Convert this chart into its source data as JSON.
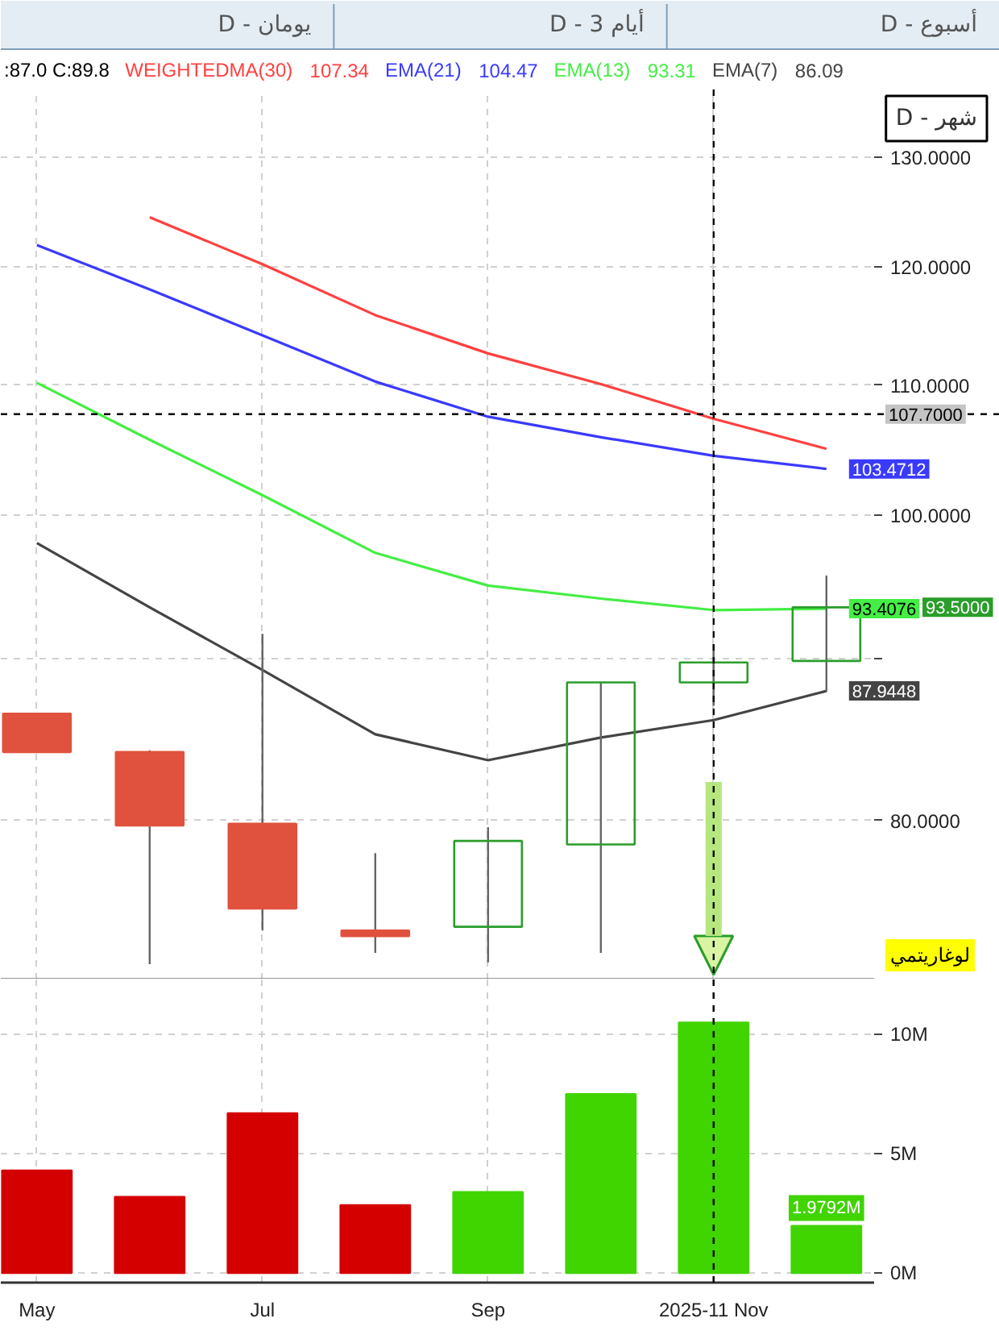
{
  "chart_data": [
    {
      "type": "candlestick",
      "categories": [
        "May",
        null,
        "Jul",
        null,
        "Sep",
        null,
        "2025-11 Nov",
        null
      ],
      "ohlc": [
        [
          86.5,
          86.5,
          84.1,
          84.1
        ],
        [
          84.1,
          84.2,
          72.0,
          79.7
        ],
        [
          79.8,
          91.7,
          73.8,
          75.0
        ],
        [
          73.8,
          78.1,
          72.6,
          73.5
        ],
        [
          74.0,
          79.6,
          72.1,
          78.8
        ],
        [
          78.6,
          88.5,
          72.6,
          88.5
        ],
        [
          88.5,
          91.0,
          87.0,
          89.8
        ],
        [
          89.9,
          95.7,
          87.9,
          93.5
        ]
      ],
      "colors": [
        "#e0523e",
        "#e0523e",
        "#e0523e",
        "#e0523e",
        "#2a9d2a",
        "#2a9d2a",
        "#2a9d2a",
        "#2a9d2a"
      ],
      "series": [
        {
          "name": "WEIGHTEDMA(30)",
          "type": "line",
          "color": "#ff4040",
          "values": [
            null,
            124.4,
            120.2,
            115.8,
            112.6,
            110.1,
            107.34,
            105.0
          ]
        },
        {
          "name": "EMA(21)",
          "type": "line",
          "color": "#3a3aff",
          "values": [
            121.9,
            118.0,
            114.1,
            110.3,
            107.5,
            105.9,
            104.47,
            103.4712
          ],
          "value_labels": [
            null,
            null,
            null,
            null,
            null,
            null,
            null,
            "103.4712"
          ]
        },
        {
          "name": "EMA(13)",
          "type": "line",
          "color": "#44ee44",
          "values": [
            110.2,
            105.7,
            101.5,
            97.3,
            95.0,
            94.1,
            93.31,
            93.4076
          ],
          "value_labels": [
            null,
            null,
            null,
            null,
            null,
            null,
            null,
            "93.4076"
          ]
        },
        {
          "name": "EMA(7)",
          "type": "line",
          "color": "#444444",
          "values": [
            98.0,
            93.5,
            89.3,
            85.2,
            83.6,
            85.0,
            86.09,
            87.9448
          ],
          "value_labels": [
            null,
            null,
            null,
            null,
            null,
            null,
            null,
            "87.9448"
          ]
        }
      ],
      "annotations": [
        ":87.0 C:89.8",
        "107.34",
        "104.47",
        "93.31",
        "86.09",
        "لوغاريتمي",
        "93.5000",
        "D - يومان",
        "D - 3 أيام",
        "D - أسبوع",
        "D - شهر"
      ],
      "log": true,
      "ylim": [
        71.2,
        136.6
      ],
      "yticks": [
        {
          "value": 80,
          "label": "80.0000"
        },
        {
          "value": 90,
          "label": null
        },
        {
          "value": 100,
          "label": "100.0000"
        },
        {
          "value": 110,
          "label": "110.0000"
        },
        {
          "value": 120,
          "label": "120.0000"
        },
        {
          "value": 130,
          "label": "130.0000"
        }
      ],
      "grid": true,
      "legend": "top",
      "tick_labels": "y",
      "ref_lines": [
        {
          "axis": "x",
          "value": "2025-11 Nov",
          "line_style": "dashed",
          "color": "#000000"
        },
        {
          "axis": "y",
          "value": 107.7,
          "label": "107.7000",
          "line_style": "dashed",
          "color": "#000000"
        }
      ]
    },
    {
      "type": "bar",
      "categories": [
        "May",
        null,
        "Jul",
        null,
        "Sep",
        null,
        "2025-11 Nov",
        null
      ],
      "values": [
        4.3,
        3.2,
        6.7,
        2.85,
        3.4,
        7.5,
        10.5,
        1.9792
      ],
      "colors": [
        "#d40000",
        "#d40000",
        "#d40000",
        "#d40000",
        "#40d400",
        "#40d400",
        "#40d400",
        "#40d400"
      ],
      "value_labels": [
        null,
        null,
        null,
        null,
        null,
        null,
        null,
        "1.9792M"
      ],
      "ylim": [
        -0.4,
        12.3
      ],
      "yticks": [
        {
          "value": 0,
          "label": "0M"
        },
        {
          "value": 5,
          "label": "5M"
        },
        {
          "value": 10,
          "label": "10M"
        }
      ],
      "grid": true,
      "ref_lines": [
        {
          "axis": "x",
          "value": "2025-11 Nov",
          "line_style": "dashed",
          "color": "#000000"
        }
      ]
    }
  ]
}
